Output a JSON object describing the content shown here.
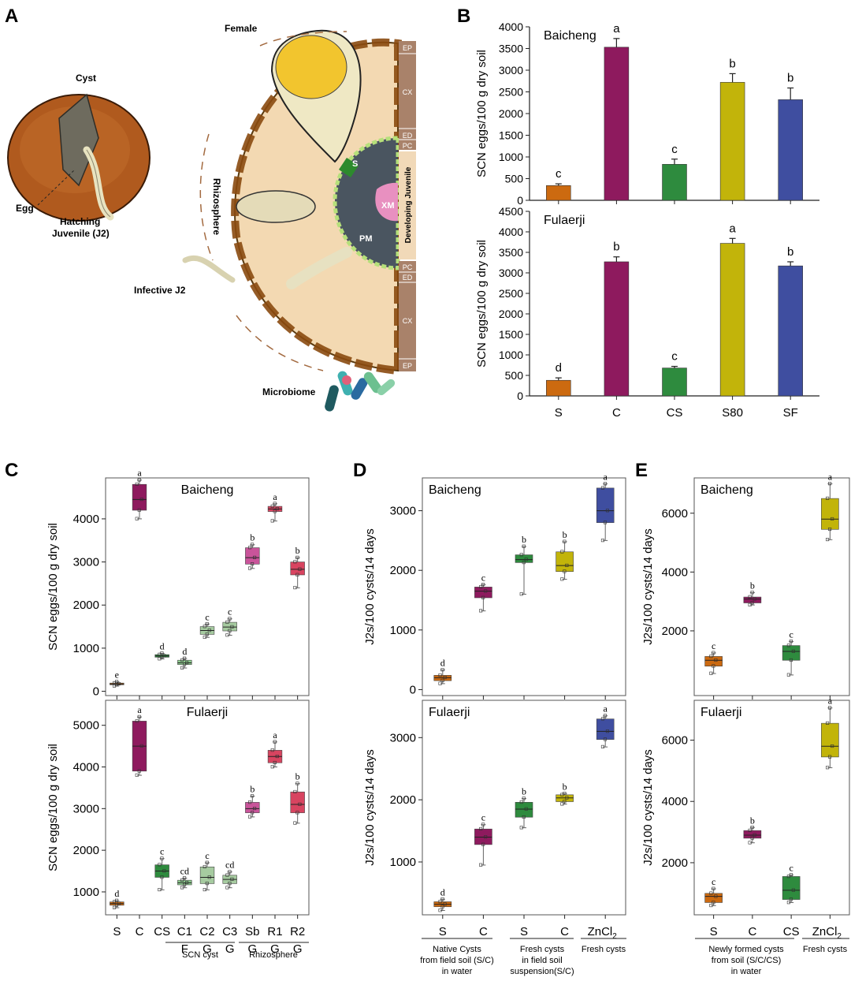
{
  "panel_letters": {
    "a": "A",
    "b": "B",
    "c": "C",
    "d": "D",
    "e": "E"
  },
  "diagram": {
    "cyst": "Cyst",
    "egg": "Egg",
    "hatching": [
      "Hatching",
      "Juvenile (J2)"
    ],
    "female": "Female",
    "rhizosphere": "Rhizosphere",
    "infective": "Infective J2",
    "microbiome": "Microbiome",
    "developing": "Developing Juvenile",
    "syncytium": "S",
    "xm": "XM",
    "pm": "PM",
    "layers_top": [
      "EP",
      "CX",
      "ED",
      "PC"
    ],
    "layers_bottom": [
      "PC",
      "ED",
      "CX",
      "EP"
    ]
  },
  "colors": {
    "S": "#cc6a10",
    "C": "#8e1a5e",
    "CS": "#2e8b3e",
    "S80": "#c2b40a",
    "SF": "#3f4ea0",
    "pink": "#c9549a",
    "red": "#d84460",
    "lightgreen": "#8fcf90",
    "teal": "#7fbf9a",
    "green2": "#a6cba0"
  },
  "chart_data": [
    {
      "id": "B-Baicheng",
      "type": "bar",
      "title": "Baicheng",
      "ylabel": "SCN eggs/100 g dry soil",
      "ylim": [
        0,
        4000
      ],
      "yticks": [
        0,
        500,
        1000,
        1500,
        2000,
        2500,
        3000,
        3500,
        4000
      ],
      "categories": [
        "S",
        "C",
        "CS",
        "S80",
        "SF"
      ],
      "values": [
        340,
        3530,
        830,
        2720,
        2320
      ],
      "errors": [
        40,
        200,
        120,
        200,
        270
      ],
      "letters": [
        "c",
        "a",
        "c",
        "b",
        "b"
      ]
    },
    {
      "id": "B-Fulaerji",
      "type": "bar",
      "title": "Fulaerji",
      "ylabel": "SCN eggs/100 g dry soil",
      "ylim": [
        0,
        4500
      ],
      "yticks": [
        0,
        500,
        1000,
        1500,
        2000,
        2500,
        3000,
        3500,
        4000,
        4500
      ],
      "categories": [
        "S",
        "C",
        "CS",
        "S80",
        "SF"
      ],
      "values": [
        380,
        3270,
        680,
        3720,
        3170
      ],
      "errors": [
        60,
        120,
        40,
        120,
        100
      ],
      "letters": [
        "d",
        "b",
        "c",
        "a",
        "b"
      ]
    },
    {
      "id": "C-Baicheng",
      "type": "box",
      "title": "Baicheng",
      "ylabel": "SCN eggs/100 g dry soil",
      "ylim": [
        -100,
        4950
      ],
      "yticks": [
        0,
        1000,
        2000,
        3000,
        4000
      ],
      "categories": [
        "S",
        "C",
        "CS",
        "C1 F",
        "C2 G",
        "C3 G",
        "Sb G",
        "R1 G",
        "R2 G"
      ],
      "boxes": [
        [
          120,
          150,
          170,
          190,
          220
        ],
        [
          4000,
          4200,
          4450,
          4800,
          4900
        ],
        [
          750,
          790,
          820,
          850,
          880
        ],
        [
          540,
          620,
          660,
          720,
          760
        ],
        [
          1250,
          1320,
          1410,
          1500,
          1560
        ],
        [
          1300,
          1400,
          1490,
          1600,
          1680
        ],
        [
          2850,
          2950,
          3100,
          3330,
          3400
        ],
        [
          3950,
          4170,
          4230,
          4290,
          4350
        ],
        [
          2400,
          2700,
          2830,
          3000,
          3100
        ]
      ],
      "letters": [
        "e",
        "a",
        "d",
        "d",
        "c",
        "c",
        "b",
        "a",
        "b"
      ]
    },
    {
      "id": "C-Fulaerji",
      "type": "box",
      "title": "Fulaerji",
      "ylabel": "SCN eggs/100 g dry soil",
      "ylim": [
        450,
        5600
      ],
      "yticks": [
        1000,
        2000,
        3000,
        4000,
        5000
      ],
      "categories": [
        "S",
        "C",
        "CS",
        "C1 F",
        "C2 G",
        "C3 G",
        "Sb G",
        "R1 G",
        "R2 G"
      ],
      "boxes": [
        [
          620,
          680,
          720,
          760,
          790
        ],
        [
          3800,
          3900,
          4500,
          5100,
          5200
        ],
        [
          1050,
          1350,
          1500,
          1650,
          1800
        ],
        [
          1100,
          1170,
          1220,
          1280,
          1330
        ],
        [
          1050,
          1200,
          1350,
          1600,
          1700
        ],
        [
          1100,
          1200,
          1300,
          1400,
          1480
        ],
        [
          2800,
          2900,
          3000,
          3150,
          3300
        ],
        [
          4000,
          4100,
          4250,
          4400,
          4600
        ],
        [
          2650,
          2900,
          3100,
          3400,
          3600
        ]
      ],
      "letters": [
        "d",
        "a",
        "c",
        "cd",
        "c",
        "cd",
        "b",
        "a",
        "b"
      ]
    },
    {
      "id": "D-Baicheng",
      "type": "box",
      "title": "Baicheng",
      "ylabel": "J2s/100 cysts/14 days",
      "ylim": [
        -100,
        3550
      ],
      "yticks": [
        0,
        1000,
        2000,
        3000
      ],
      "categories": [
        "S",
        "C",
        "S",
        "C",
        "ZnCl2"
      ],
      "boxes": [
        [
          100,
          150,
          200,
          240,
          330
        ],
        [
          1320,
          1540,
          1650,
          1720,
          1760
        ],
        [
          1600,
          2130,
          2180,
          2260,
          2400
        ],
        [
          1850,
          1980,
          2080,
          2310,
          2480
        ],
        [
          2500,
          2800,
          3000,
          3380,
          3450
        ]
      ],
      "letters": [
        "d",
        "c",
        "b",
        "b",
        "a"
      ]
    },
    {
      "id": "D-Fulaerji",
      "type": "box",
      "title": "Fulaerji",
      "ylabel": "J2s/100 cysts/14 days",
      "ylim": [
        150,
        3600
      ],
      "yticks": [
        1000,
        2000,
        3000
      ],
      "categories": [
        "S",
        "C",
        "S",
        "C",
        "ZnCl2"
      ],
      "boxes": [
        [
          220,
          280,
          320,
          360,
          400
        ],
        [
          950,
          1280,
          1400,
          1530,
          1600
        ],
        [
          1550,
          1720,
          1850,
          1960,
          2020
        ],
        [
          1930,
          1970,
          2030,
          2080,
          2100
        ],
        [
          2850,
          2970,
          3100,
          3300,
          3350
        ]
      ],
      "letters": [
        "d",
        "c",
        "b",
        "b",
        "a"
      ]
    },
    {
      "id": "E-Baicheng",
      "type": "box",
      "title": "Baicheng",
      "ylabel": "J2s/100 cysts/14 days",
      "ylim": [
        -200,
        7200
      ],
      "yticks": [
        2000,
        4000,
        6000
      ],
      "categories": [
        "S",
        "C",
        "CS",
        "ZnCl2"
      ],
      "boxes": [
        [
          550,
          800,
          1000,
          1130,
          1250
        ],
        [
          2880,
          2950,
          3080,
          3150,
          3300
        ],
        [
          500,
          1000,
          1300,
          1500,
          1640
        ],
        [
          5100,
          5450,
          5800,
          6500,
          7000
        ]
      ],
      "letters": [
        "c",
        "b",
        "c",
        "a"
      ]
    },
    {
      "id": "E-Fulaerji",
      "type": "box",
      "title": "Fulaerji",
      "ylabel": "J2s/100 cysts/14 days",
      "ylim": [
        300,
        7300
      ],
      "yticks": [
        2000,
        4000,
        6000
      ],
      "categories": [
        "S",
        "C",
        "CS",
        "ZnCl2"
      ],
      "boxes": [
        [
          600,
          700,
          900,
          1000,
          1150
        ],
        [
          2650,
          2800,
          2900,
          3050,
          3150
        ],
        [
          700,
          800,
          1100,
          1550,
          1600
        ],
        [
          5100,
          5450,
          5800,
          6550,
          7050
        ]
      ],
      "letters": [
        "c",
        "b",
        "c",
        "a"
      ]
    }
  ],
  "groups": {
    "C": [
      "SCN cyst",
      "Rhizosphere"
    ],
    "D": [
      [
        "Native Cysts",
        "from field soil (S/C)",
        "in water"
      ],
      [
        "Fresh cysts",
        "in field soil",
        "suspension(S/C)"
      ],
      [
        "Fresh cysts"
      ]
    ],
    "E": [
      [
        "Newly formed cysts",
        "from soil (S/C/CS)",
        "in water"
      ],
      [
        "Fresh cysts"
      ]
    ]
  }
}
